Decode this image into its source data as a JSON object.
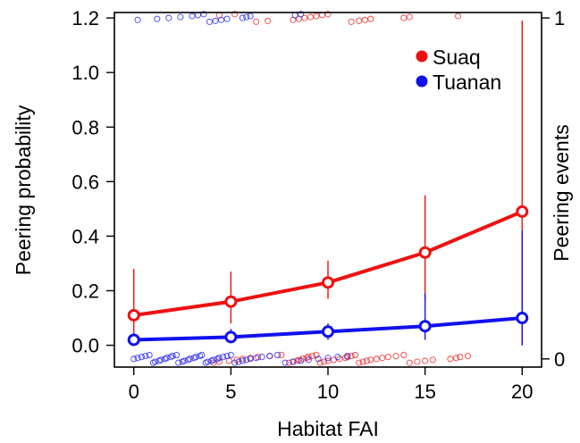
{
  "chart_data": {
    "type": "scatter",
    "xlabel": "Habitat FAI",
    "ylabel": "Peering probability",
    "y2label": "Peering events",
    "xlim": [
      -1,
      21
    ],
    "ylim": [
      -0.08,
      1.22
    ],
    "xticks": [
      0,
      5,
      10,
      15,
      20
    ],
    "yticks": [
      0.0,
      0.2,
      0.4,
      0.6,
      0.8,
      1.0,
      1.2
    ],
    "ytick_labels": [
      "0.0",
      "0.2",
      "0.4",
      "0.6",
      "0.8",
      "1.0",
      "1.2"
    ],
    "y2ticks": [
      0,
      1
    ],
    "y2tick_labels": [
      "0",
      "1"
    ],
    "y2_positions": {
      "0": -0.05,
      "1": 1.2
    },
    "legend": {
      "position": "top-right",
      "entries": [
        {
          "label": "Suaq",
          "color": "#ee1111"
        },
        {
          "label": "Tuanan",
          "color": "#1111ee"
        }
      ]
    },
    "series": [
      {
        "name": "Suaq",
        "color": "#ee1111",
        "x": [
          0,
          5,
          10,
          15,
          20
        ],
        "y": [
          0.11,
          0.16,
          0.23,
          0.34,
          0.49
        ],
        "ci_low": [
          0.04,
          0.08,
          0.17,
          0.16,
          0.0
        ],
        "ci_high": [
          0.28,
          0.27,
          0.31,
          0.55,
          1.19
        ],
        "events_0": [
          4.1,
          4.4,
          4.9,
          5.3,
          5.6,
          6.0,
          6.4,
          7.0,
          7.6,
          8.0,
          8.2,
          8.4,
          8.5,
          8.7,
          8.9,
          9.0,
          9.2,
          9.4,
          9.6,
          9.8,
          10.0,
          10.3,
          10.6,
          10.9,
          11.0,
          11.2,
          11.4,
          11.6,
          11.8,
          12.0,
          12.2,
          12.5,
          12.8,
          13.1,
          13.5,
          13.9,
          14.2,
          14.6,
          15.0,
          15.4,
          16.3,
          16.6,
          16.8,
          17.2
        ],
        "events_1": [
          4.4,
          5.2,
          6.3,
          6.9,
          8.2,
          8.5,
          8.8,
          9.1,
          9.4,
          9.7,
          10.0,
          11.2,
          11.6,
          11.9,
          12.2,
          13.9,
          14.2,
          16.7
        ]
      },
      {
        "name": "Tuanan",
        "color": "#1111ee",
        "x": [
          0,
          5,
          10,
          15,
          20
        ],
        "y": [
          0.02,
          0.03,
          0.05,
          0.07,
          0.1
        ],
        "ci_low": [
          0.01,
          0.01,
          0.02,
          0.02,
          0.0
        ],
        "ci_high": [
          0.04,
          0.06,
          0.08,
          0.19,
          0.42
        ],
        "events_0": [
          0.0,
          0.2,
          0.4,
          0.6,
          0.8,
          1.0,
          1.1,
          1.3,
          1.4,
          1.6,
          1.7,
          1.9,
          2.0,
          2.2,
          2.3,
          2.5,
          2.6,
          2.8,
          2.9,
          3.1,
          3.2,
          3.4,
          3.5,
          3.7,
          3.8,
          4.0,
          4.1,
          4.3,
          4.4,
          4.6,
          4.8,
          5.0,
          5.2,
          5.4,
          5.6,
          5.8,
          6.0,
          6.3,
          6.6,
          7.0,
          7.4,
          7.8,
          8.2,
          8.6,
          9.0,
          9.5,
          10.0,
          10.5,
          11.0
        ],
        "events_1": [
          0.2,
          1.2,
          1.8,
          2.4,
          3.0,
          3.3,
          3.6,
          3.9,
          4.2,
          4.5,
          4.8,
          5.6,
          5.8,
          6.0,
          8.3,
          8.6
        ]
      }
    ]
  }
}
